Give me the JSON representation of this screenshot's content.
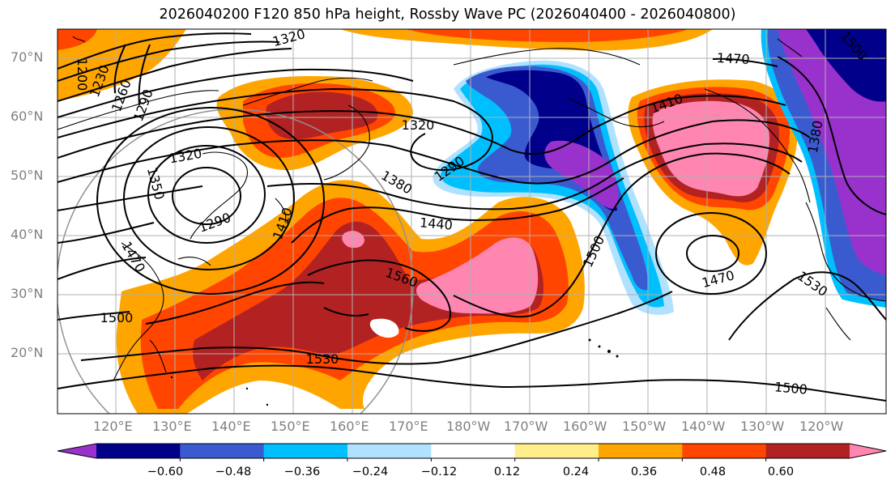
{
  "title": "2026040200 F120 850 hPa height, Rossby Wave PC (2026040400 - 2026040800)",
  "latitude_labels": [
    "70°N",
    "60°N",
    "50°N",
    "40°N",
    "30°N",
    "20°N"
  ],
  "longitude_labels": [
    "120°E",
    "130°E",
    "140°E",
    "150°E",
    "160°E",
    "170°E",
    "180°W",
    "170°W",
    "160°W",
    "150°W",
    "140°W",
    "130°W",
    "120°W"
  ],
  "colorbar": {
    "ticks": [
      "−0.60",
      "−0.48",
      "−0.36",
      "−0.24",
      "−0.12",
      "0.12",
      "0.24",
      "0.36",
      "0.48",
      "0.60"
    ],
    "colors": [
      "#9932cc",
      "#00008b",
      "#3a5bd0",
      "#00bfff",
      "#b0e2ff",
      "#ffffff",
      "#ffee8a",
      "#ffa500",
      "#ff4500",
      "#b22222",
      "#ff86b0"
    ]
  },
  "contour_labels": [
    "1320",
    "1200",
    "1230",
    "1260",
    "1290",
    "1320",
    "1350",
    "1290",
    "1410",
    "1470",
    "1320",
    "1380",
    "1440",
    "1290",
    "1560",
    "1500",
    "1530",
    "1500",
    "1410",
    "1470",
    "1500",
    "1470",
    "1530",
    "1500",
    "1380"
  ]
}
